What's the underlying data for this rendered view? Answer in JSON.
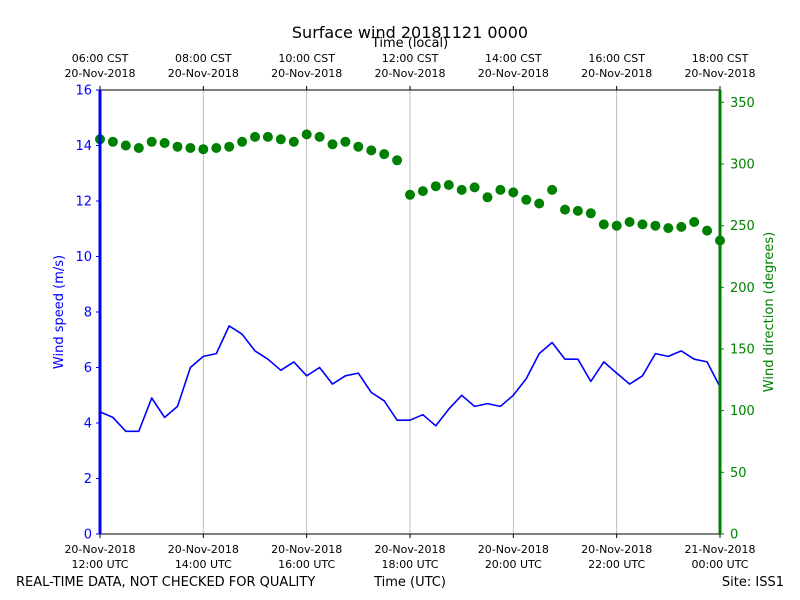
{
  "chart_data": {
    "type": "line",
    "title": "Surface wind 20181121 0000",
    "xlabel_bottom": "Time (UTC)",
    "xlabel_top": "Time (local)",
    "ylabel_left": "Wind speed (m/s)",
    "ylabel_right": "Wind direction (degrees)",
    "ylim_left": [
      0,
      16
    ],
    "ylim_right": [
      0,
      360
    ],
    "xlim_hours_utc": [
      12,
      24
    ],
    "grid": "vertical",
    "left_ticks": [
      "0",
      "2",
      "4",
      "6",
      "8",
      "10",
      "12",
      "14",
      "16"
    ],
    "right_ticks": [
      "0",
      "50",
      "100",
      "150",
      "200",
      "250",
      "300",
      "350"
    ],
    "bottom_ticks": [
      {
        "date": "20-Nov-2018",
        "time": "12:00 UTC"
      },
      {
        "date": "20-Nov-2018",
        "time": "14:00 UTC"
      },
      {
        "date": "20-Nov-2018",
        "time": "16:00 UTC"
      },
      {
        "date": "20-Nov-2018",
        "time": "18:00 UTC"
      },
      {
        "date": "20-Nov-2018",
        "time": "20:00 UTC"
      },
      {
        "date": "20-Nov-2018",
        "time": "22:00 UTC"
      },
      {
        "date": "21-Nov-2018",
        "time": "00:00 UTC"
      }
    ],
    "top_ticks": [
      {
        "time": "06:00 CST",
        "date": "20-Nov-2018"
      },
      {
        "time": "08:00 CST",
        "date": "20-Nov-2018"
      },
      {
        "time": "10:00 CST",
        "date": "20-Nov-2018"
      },
      {
        "time": "12:00 CST",
        "date": "20-Nov-2018"
      },
      {
        "time": "14:00 CST",
        "date": "20-Nov-2018"
      },
      {
        "time": "16:00 CST",
        "date": "20-Nov-2018"
      },
      {
        "time": "18:00 CST",
        "date": "20-Nov-2018"
      }
    ],
    "series": [
      {
        "name": "Wind speed",
        "axis": "left",
        "style": "line",
        "color": "#0000ff",
        "x_hours": [
          12.0,
          12.25,
          12.5,
          12.75,
          13.0,
          13.25,
          13.5,
          13.75,
          14.0,
          14.25,
          14.5,
          14.75,
          15.0,
          15.25,
          15.5,
          15.75,
          16.0,
          16.25,
          16.5,
          16.75,
          17.0,
          17.25,
          17.5,
          17.75,
          18.0,
          18.25,
          18.5,
          18.75,
          19.0,
          19.25,
          19.5,
          19.75,
          20.0,
          20.25,
          20.5,
          20.75,
          21.0,
          21.25,
          21.5,
          21.75,
          22.0,
          22.25,
          22.5,
          22.75,
          23.0,
          23.25,
          23.5,
          23.75,
          24.0
        ],
        "values": [
          4.4,
          4.2,
          3.7,
          3.7,
          4.9,
          4.2,
          4.6,
          6.0,
          6.4,
          6.5,
          7.5,
          7.2,
          6.6,
          6.3,
          5.9,
          6.2,
          5.7,
          6.0,
          5.4,
          5.7,
          5.8,
          5.1,
          4.8,
          4.1,
          4.1,
          4.3,
          3.9,
          4.5,
          5.0,
          4.6,
          4.7,
          4.6,
          5.0,
          5.6,
          6.5,
          6.9,
          6.3,
          6.3,
          5.5,
          6.2,
          5.8,
          5.4,
          5.7,
          6.5,
          6.4,
          6.6,
          6.3,
          6.2,
          5.3
        ]
      },
      {
        "name": "Wind direction",
        "axis": "right",
        "style": "scatter",
        "color": "#008000",
        "x_hours": [
          12.0,
          12.25,
          12.5,
          12.75,
          13.0,
          13.25,
          13.5,
          13.75,
          14.0,
          14.25,
          14.5,
          14.75,
          15.0,
          15.25,
          15.5,
          15.75,
          16.0,
          16.25,
          16.5,
          16.75,
          17.0,
          17.25,
          17.5,
          17.75,
          18.0,
          18.25,
          18.5,
          18.75,
          19.0,
          19.25,
          19.5,
          19.75,
          20.0,
          20.25,
          20.5,
          20.75,
          21.0,
          21.25,
          21.5,
          21.75,
          22.0,
          22.25,
          22.5,
          22.75,
          23.0,
          23.25,
          23.5,
          23.75,
          24.0
        ],
        "values": [
          320,
          318,
          315,
          313,
          318,
          317,
          314,
          313,
          312,
          313,
          314,
          318,
          322,
          322,
          320,
          318,
          324,
          322,
          316,
          318,
          314,
          311,
          308,
          303,
          275,
          278,
          282,
          283,
          279,
          281,
          273,
          279,
          277,
          271,
          268,
          279,
          263,
          262,
          260,
          251,
          250,
          253,
          251,
          250,
          248,
          249,
          253,
          246,
          238
        ]
      }
    ]
  },
  "footer": {
    "left": "REAL-TIME DATA, NOT CHECKED FOR QUALITY",
    "center": "Time (UTC)",
    "right": "Site: ISS1"
  }
}
